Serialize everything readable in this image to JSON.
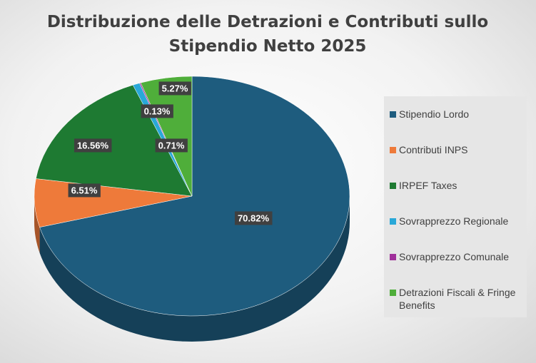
{
  "chart_data": {
    "type": "pie",
    "title": "Distribuzione delle Detrazioni e Contributi sullo Stipendio Netto 2025",
    "categories": [
      "Stipendio Lordo",
      "Contributi INPS",
      "IRPEF Taxes",
      "Sovrapprezzo Regionale",
      "Sovrapprezzo Comunale",
      "Detrazioni Fiscali & Fringe Benefits"
    ],
    "values": [
      70.82,
      6.51,
      16.56,
      0.71,
      0.13,
      5.27
    ],
    "value_labels": [
      "70.82%",
      "6.51%",
      "16.56%",
      "0.71%",
      "0.13%",
      "5.27%"
    ],
    "colors": [
      "#1e5c7e",
      "#ee7a3a",
      "#1e7a32",
      "#29a8d8",
      "#a0309a",
      "#4fae3a"
    ],
    "legend": "right"
  }
}
